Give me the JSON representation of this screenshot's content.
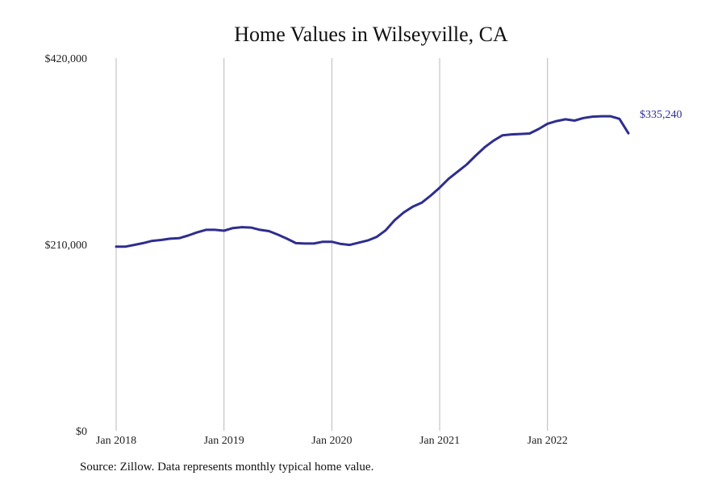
{
  "chart_data": {
    "type": "line",
    "title": "Home Values in Wilseyville, CA",
    "xlabel": "",
    "ylabel": "",
    "y_ticks": [
      {
        "value": 0,
        "label": "$0"
      },
      {
        "value": 210000,
        "label": "$210,000"
      },
      {
        "value": 420000,
        "label": "$420,000"
      }
    ],
    "x_ticks": [
      {
        "value": "2018-01",
        "label": "Jan 2018"
      },
      {
        "value": "2019-01",
        "label": "Jan 2019"
      },
      {
        "value": "2020-01",
        "label": "Jan 2020"
      },
      {
        "value": "2021-01",
        "label": "Jan 2021"
      },
      {
        "value": "2022-01",
        "label": "Jan 2022"
      }
    ],
    "ylim": [
      0,
      420000
    ],
    "xlim": [
      "2018-01",
      "2022-10"
    ],
    "grid": "vertical lines at x ticks",
    "legend": "none",
    "series": [
      {
        "color": "#2e2e8f",
        "end_label": "$335,240",
        "x": [
          "2018-01",
          "2018-02",
          "2018-03",
          "2018-04",
          "2018-05",
          "2018-06",
          "2018-07",
          "2018-08",
          "2018-09",
          "2018-10",
          "2018-11",
          "2018-12",
          "2019-01",
          "2019-02",
          "2019-03",
          "2019-04",
          "2019-05",
          "2019-06",
          "2019-07",
          "2019-08",
          "2019-09",
          "2019-10",
          "2019-11",
          "2019-12",
          "2020-01",
          "2020-02",
          "2020-03",
          "2020-04",
          "2020-05",
          "2020-06",
          "2020-07",
          "2020-08",
          "2020-09",
          "2020-10",
          "2020-11",
          "2020-12",
          "2021-01",
          "2021-02",
          "2021-03",
          "2021-04",
          "2021-05",
          "2021-06",
          "2021-07",
          "2021-08",
          "2021-09",
          "2021-10",
          "2021-11",
          "2021-12",
          "2022-01",
          "2022-02",
          "2022-03",
          "2022-04",
          "2022-05",
          "2022-06",
          "2022-07",
          "2022-08",
          "2022-09",
          "2022-10"
        ],
        "values": [
          207500,
          207500,
          209500,
          211500,
          214000,
          215000,
          216500,
          217000,
          220000,
          223500,
          226500,
          226500,
          225500,
          228500,
          229500,
          229000,
          226500,
          225000,
          221000,
          216500,
          211500,
          211000,
          211000,
          213000,
          213000,
          210500,
          209500,
          212000,
          214500,
          218500,
          226000,
          237500,
          246000,
          252500,
          257000,
          265000,
          274000,
          284000,
          292000,
          300000,
          310000,
          319500,
          327000,
          333000,
          334000,
          334500,
          335000,
          340000,
          346000,
          349000,
          351000,
          349500,
          352500,
          354000,
          354500,
          354500,
          351500,
          335240
        ]
      }
    ]
  },
  "source_note": "Source: Zillow. Data represents monthly typical home value."
}
